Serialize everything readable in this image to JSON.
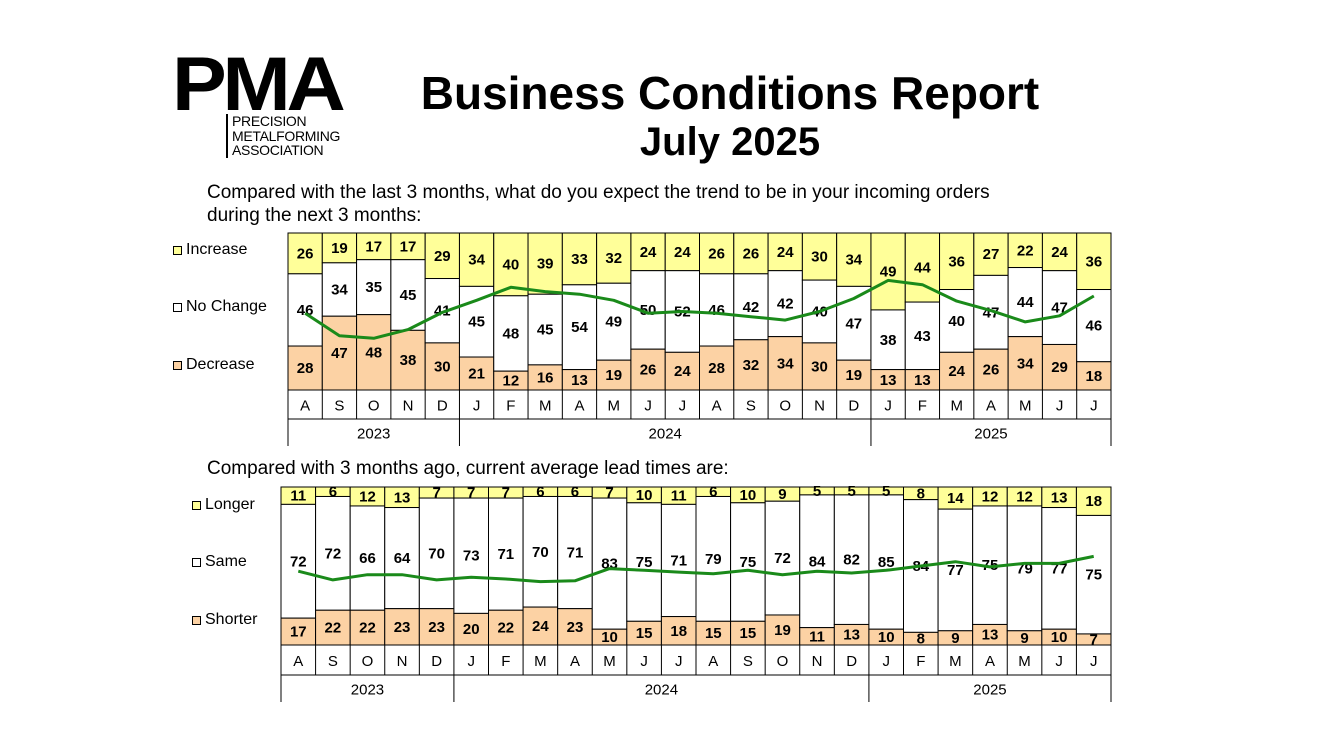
{
  "header": {
    "logo_text": "PMA",
    "logo_sub": [
      "PRECISION",
      "METALFORMING",
      "ASSOCIATION"
    ],
    "title": "Business Conditions Report",
    "subtitle": "July 2025"
  },
  "colors": {
    "top": "#ffff99",
    "middle": "#ffffff",
    "bottom": "#fcd2a4",
    "line": "#1a8a1a"
  },
  "months": [
    "A",
    "S",
    "O",
    "N",
    "D",
    "J",
    "F",
    "M",
    "A",
    "M",
    "J",
    "J",
    "A",
    "S",
    "O",
    "N",
    "D",
    "J",
    "F",
    "M",
    "A",
    "M",
    "J",
    "J"
  ],
  "chart_data": [
    {
      "type": "bar",
      "stacked": true,
      "question": "Compared with the last 3 months, what do you expect the trend to be in your incoming orders during the next 3 months:",
      "question_lines": [
        "Compared with the last 3 months, what do you expect the trend to be in your incoming orders",
        "during the next 3 months:"
      ],
      "categories": [
        "A",
        "S",
        "O",
        "N",
        "D",
        "J",
        "F",
        "M",
        "A",
        "M",
        "J",
        "J",
        "A",
        "S",
        "O",
        "N",
        "D",
        "J",
        "F",
        "M",
        "A",
        "M",
        "J",
        "J"
      ],
      "years": [
        {
          "label": "2023",
          "count": 5
        },
        {
          "label": "2024",
          "count": 12
        },
        {
          "label": "2025",
          "count": 7
        }
      ],
      "series": [
        {
          "name": "Increase",
          "values": [
            26,
            19,
            17,
            17,
            29,
            34,
            40,
            39,
            33,
            32,
            24,
            24,
            26,
            26,
            24,
            30,
            34,
            49,
            44,
            36,
            27,
            22,
            24,
            36
          ]
        },
        {
          "name": "No Change",
          "values": [
            46,
            34,
            35,
            45,
            41,
            45,
            48,
            45,
            54,
            49,
            50,
            52,
            46,
            42,
            42,
            40,
            47,
            38,
            43,
            40,
            47,
            44,
            47,
            46
          ]
        },
        {
          "name": "Decrease",
          "values": [
            28,
            47,
            48,
            38,
            30,
            21,
            12,
            16,
            13,
            19,
            26,
            24,
            28,
            32,
            34,
            30,
            19,
            13,
            13,
            24,
            26,
            34,
            29,
            18
          ]
        }
      ],
      "trend_line": "Increase minus Decrease"
    },
    {
      "type": "bar",
      "stacked": true,
      "question": "Compared with 3 months ago, current average lead times are:",
      "question_lines": [
        "Compared with 3 months ago, current average lead times are:"
      ],
      "categories": [
        "A",
        "S",
        "O",
        "N",
        "D",
        "J",
        "F",
        "M",
        "A",
        "M",
        "J",
        "J",
        "A",
        "S",
        "O",
        "N",
        "D",
        "J",
        "F",
        "M",
        "A",
        "M",
        "J",
        "J"
      ],
      "years": [
        {
          "label": "2023",
          "count": 5
        },
        {
          "label": "2024",
          "count": 12
        },
        {
          "label": "2025",
          "count": 7
        }
      ],
      "series": [
        {
          "name": "Longer",
          "values": [
            11,
            6,
            12,
            13,
            7,
            7,
            7,
            6,
            6,
            7,
            10,
            11,
            6,
            10,
            9,
            5,
            5,
            5,
            8,
            14,
            12,
            12,
            13,
            18
          ]
        },
        {
          "name": "Same",
          "values": [
            72,
            72,
            66,
            64,
            70,
            73,
            71,
            70,
            71,
            83,
            75,
            71,
            79,
            75,
            72,
            84,
            82,
            85,
            84,
            77,
            75,
            79,
            77,
            75
          ]
        },
        {
          "name": "Shorter",
          "values": [
            17,
            22,
            22,
            23,
            23,
            20,
            22,
            24,
            23,
            10,
            15,
            18,
            15,
            15,
            19,
            11,
            13,
            10,
            8,
            9,
            13,
            9,
            10,
            7
          ]
        }
      ],
      "trend_line": "Longer minus Shorter"
    }
  ]
}
